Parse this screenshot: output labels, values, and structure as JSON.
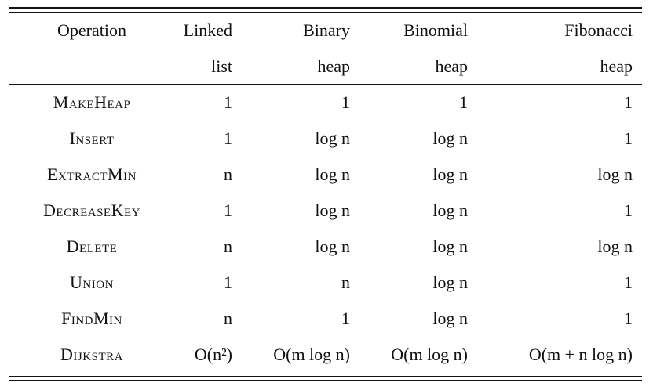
{
  "headers": {
    "row1": [
      "Operation",
      "Linked",
      "Binary",
      "Binomial",
      "Fibonacci"
    ],
    "row2": [
      "",
      "list",
      "heap",
      "heap",
      "heap"
    ]
  },
  "rows": [
    {
      "op": "MakeHeap",
      "vals": [
        "1",
        "1",
        "1",
        "1"
      ]
    },
    {
      "op": "Insert",
      "vals": [
        "1",
        "log n",
        "log n",
        "1"
      ]
    },
    {
      "op": "ExtractMin",
      "vals": [
        "n",
        "log n",
        "log n",
        "log n"
      ]
    },
    {
      "op": "DecreaseKey",
      "vals": [
        "1",
        "log n",
        "log n",
        "1"
      ]
    },
    {
      "op": "Delete",
      "vals": [
        "n",
        "log n",
        "log n",
        "log n"
      ]
    },
    {
      "op": "Union",
      "vals": [
        "1",
        "n",
        "log n",
        "1"
      ]
    },
    {
      "op": "FindMin",
      "vals": [
        "n",
        "1",
        "log n",
        "1"
      ]
    }
  ],
  "summary": {
    "op": "Dijkstra",
    "vals": [
      "O(n²)",
      "O(m log n)",
      "O(m log n)",
      "O(m + n log n)"
    ]
  }
}
